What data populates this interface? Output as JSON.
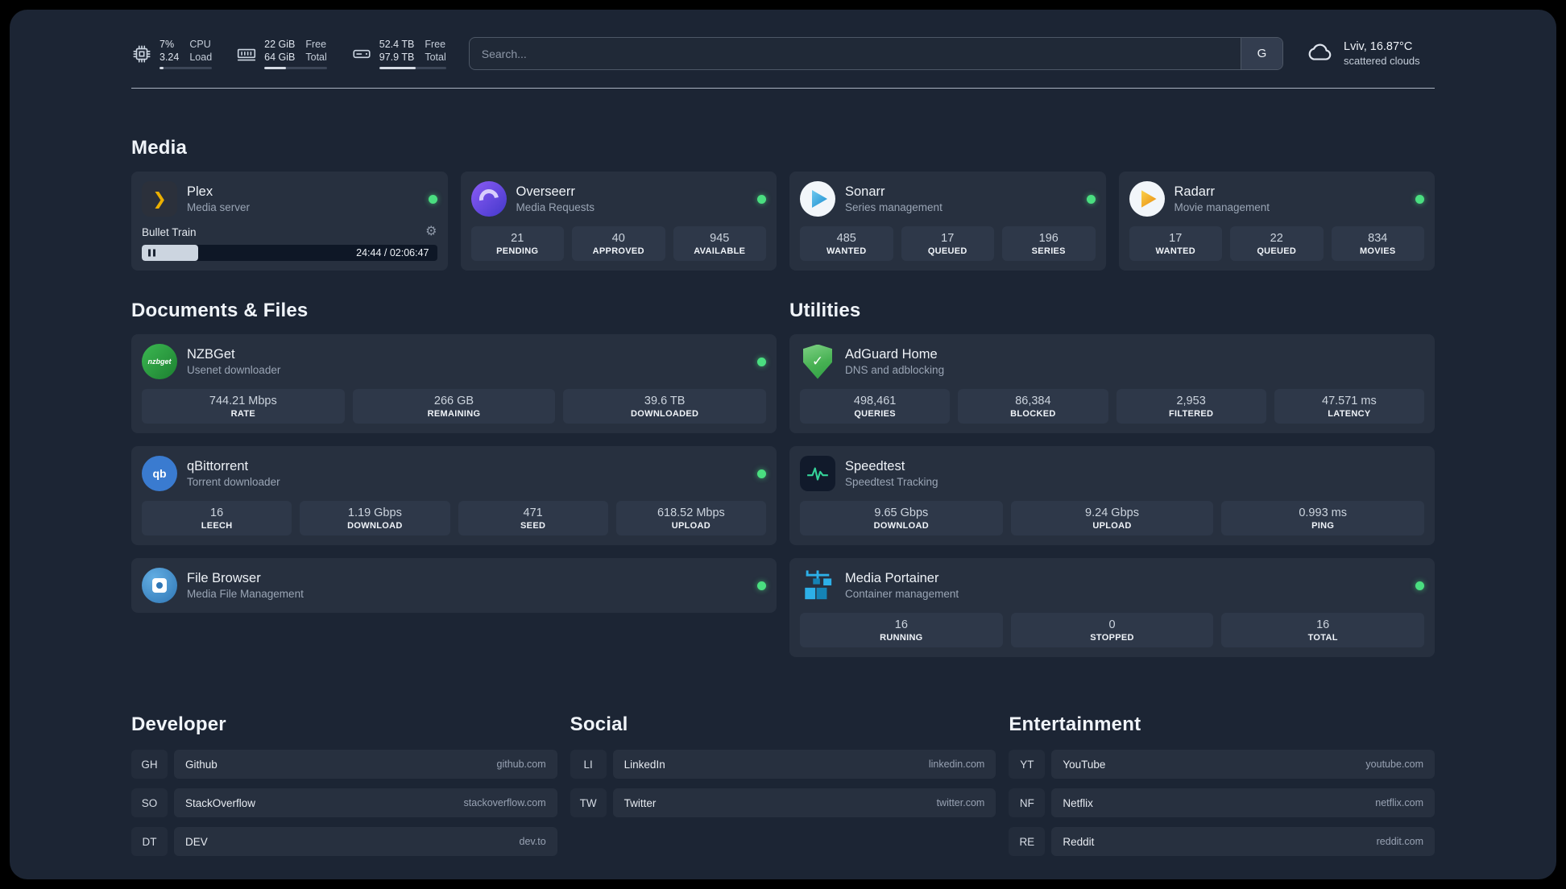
{
  "header": {
    "resources": [
      {
        "name": "cpu",
        "col1": [
          "7%",
          "3.24"
        ],
        "col2": [
          "CPU",
          "Load"
        ],
        "percent": 7
      },
      {
        "name": "memory",
        "col1": [
          "22 GiB",
          "64 GiB"
        ],
        "col2": [
          "Free",
          "Total"
        ],
        "percent": 34
      },
      {
        "name": "disk",
        "col1": [
          "52.4 TB",
          "97.9 TB"
        ],
        "col2": [
          "Free",
          "Total"
        ],
        "percent": 54
      }
    ],
    "search": {
      "placeholder": "Search...",
      "provider": "G"
    },
    "weather": {
      "location": "Lviv, 16.87°C",
      "condition": "scattered clouds"
    }
  },
  "media": {
    "title": "Media",
    "plex": {
      "name": "Plex",
      "desc": "Media server",
      "now_playing": "Bullet Train",
      "time": "24:44 / 02:06:47",
      "progress_percent": 19
    },
    "overseerr": {
      "name": "Overseerr",
      "desc": "Media Requests",
      "stats": [
        {
          "value": "21",
          "label": "PENDING"
        },
        {
          "value": "40",
          "label": "APPROVED"
        },
        {
          "value": "945",
          "label": "AVAILABLE"
        }
      ]
    },
    "sonarr": {
      "name": "Sonarr",
      "desc": "Series management",
      "stats": [
        {
          "value": "485",
          "label": "WANTED"
        },
        {
          "value": "17",
          "label": "QUEUED"
        },
        {
          "value": "196",
          "label": "SERIES"
        }
      ]
    },
    "radarr": {
      "name": "Radarr",
      "desc": "Movie management",
      "stats": [
        {
          "value": "17",
          "label": "WANTED"
        },
        {
          "value": "22",
          "label": "QUEUED"
        },
        {
          "value": "834",
          "label": "MOVIES"
        }
      ]
    }
  },
  "documents": {
    "title": "Documents & Files",
    "nzbget": {
      "name": "NZBGet",
      "desc": "Usenet downloader",
      "icon_text": "nzbget",
      "stats": [
        {
          "value": "744.21 Mbps",
          "label": "RATE"
        },
        {
          "value": "266 GB",
          "label": "REMAINING"
        },
        {
          "value": "39.6 TB",
          "label": "DOWNLOADED"
        }
      ]
    },
    "qbittorrent": {
      "name": "qBittorrent",
      "desc": "Torrent downloader",
      "icon_text": "qb",
      "stats": [
        {
          "value": "16",
          "label": "LEECH"
        },
        {
          "value": "1.19 Gbps",
          "label": "DOWNLOAD"
        },
        {
          "value": "471",
          "label": "SEED"
        },
        {
          "value": "618.52 Mbps",
          "label": "UPLOAD"
        }
      ]
    },
    "filebrowser": {
      "name": "File Browser",
      "desc": "Media File Management"
    }
  },
  "utilities": {
    "title": "Utilities",
    "adguard": {
      "name": "AdGuard Home",
      "desc": "DNS and adblocking",
      "stats": [
        {
          "value": "498,461",
          "label": "QUERIES"
        },
        {
          "value": "86,384",
          "label": "BLOCKED"
        },
        {
          "value": "2,953",
          "label": "FILTERED"
        },
        {
          "value": "47.571 ms",
          "label": "LATENCY"
        }
      ]
    },
    "speedtest": {
      "name": "Speedtest",
      "desc": "Speedtest Tracking",
      "stats": [
        {
          "value": "9.65 Gbps",
          "label": "DOWNLOAD"
        },
        {
          "value": "9.24 Gbps",
          "label": "UPLOAD"
        },
        {
          "value": "0.993 ms",
          "label": "PING"
        }
      ]
    },
    "portainer": {
      "name": "Media Portainer",
      "desc": "Container management",
      "stats": [
        {
          "value": "16",
          "label": "RUNNING"
        },
        {
          "value": "0",
          "label": "STOPPED"
        },
        {
          "value": "16",
          "label": "TOTAL"
        }
      ]
    }
  },
  "bookmarks": {
    "developer": {
      "title": "Developer",
      "items": [
        {
          "abbr": "GH",
          "name": "Github",
          "url": "github.com"
        },
        {
          "abbr": "SO",
          "name": "StackOverflow",
          "url": "stackoverflow.com"
        },
        {
          "abbr": "DT",
          "name": "DEV",
          "url": "dev.to"
        }
      ]
    },
    "social": {
      "title": "Social",
      "items": [
        {
          "abbr": "LI",
          "name": "LinkedIn",
          "url": "linkedin.com"
        },
        {
          "abbr": "TW",
          "name": "Twitter",
          "url": "twitter.com"
        }
      ]
    },
    "entertainment": {
      "title": "Entertainment",
      "items": [
        {
          "abbr": "YT",
          "name": "YouTube",
          "url": "youtube.com"
        },
        {
          "abbr": "NF",
          "name": "Netflix",
          "url": "netflix.com"
        },
        {
          "abbr": "RE",
          "name": "Reddit",
          "url": "reddit.com"
        }
      ]
    }
  },
  "colors": {
    "status_online": "#4ade80",
    "plex_accent": "#ebaf00",
    "sonarr_accent": "#35c5f4",
    "radarr_accent": "#f5a623",
    "nzbget_accent": "#23a43c",
    "qbittorrent_accent": "#3a7bd0",
    "adguard_accent": "#47b153",
    "speedtest_accent": "#34d399",
    "portainer_accent": "#2db0e8"
  }
}
